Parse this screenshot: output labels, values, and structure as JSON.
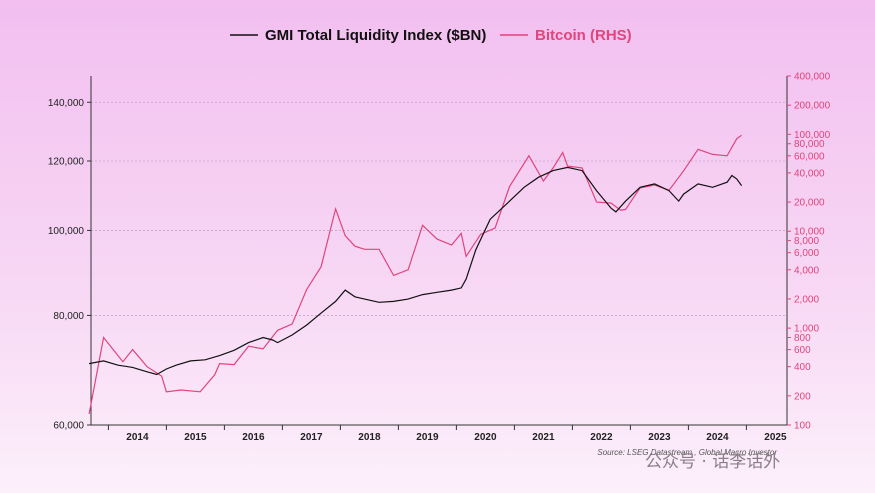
{
  "chart_data": {
    "type": "line",
    "title": "",
    "xlabel": "",
    "ylabel": "",
    "legend": {
      "placement": "top-center"
    },
    "grid": true,
    "x_ticks": [
      "2014",
      "2015",
      "2016",
      "2017",
      "2018",
      "2019",
      "2020",
      "2021",
      "2022",
      "2023",
      "2024",
      "2025"
    ],
    "y_left": {
      "scale": "log",
      "ylim": [
        60000,
        150000
      ],
      "ticks": [
        60000,
        80000,
        100000,
        120000,
        140000
      ],
      "tick_labels": [
        "60,000",
        "80,000",
        "100,000",
        "120,000",
        "140,000"
      ]
    },
    "y_right": {
      "scale": "log",
      "ylim": [
        100,
        400000
      ],
      "ticks": [
        100,
        200,
        400,
        600,
        800,
        1000,
        2000,
        4000,
        6000,
        8000,
        10000,
        20000,
        40000,
        60000,
        80000,
        100000,
        200000,
        400000
      ],
      "tick_labels": [
        "100",
        "200",
        "400",
        "600",
        "800",
        "1,000",
        "2,000",
        "4,000",
        "6,000",
        "8,000",
        "10,000",
        "20,000",
        "40,000",
        "60,000",
        "80,000",
        "100,000",
        "200,000",
        "400,000"
      ]
    },
    "series": [
      {
        "name": "GMI Total Liquidity Index ($BN)",
        "axis": "left",
        "color": "#111111",
        "points": [
          [
            "2013-09",
            70500
          ],
          [
            "2013-12",
            71000
          ],
          [
            "2014-03",
            70200
          ],
          [
            "2014-06",
            69800
          ],
          [
            "2014-09",
            69000
          ],
          [
            "2014-11",
            68500
          ],
          [
            "2015-01",
            69500
          ],
          [
            "2015-03",
            70200
          ],
          [
            "2015-06",
            71000
          ],
          [
            "2015-09",
            71200
          ],
          [
            "2015-12",
            72000
          ],
          [
            "2016-03",
            73000
          ],
          [
            "2016-06",
            74500
          ],
          [
            "2016-09",
            75500
          ],
          [
            "2016-11",
            75000
          ],
          [
            "2016-12",
            74500
          ],
          [
            "2017-03",
            76000
          ],
          [
            "2017-06",
            78000
          ],
          [
            "2017-09",
            80500
          ],
          [
            "2017-12",
            83000
          ],
          [
            "2018-02",
            85500
          ],
          [
            "2018-04",
            84000
          ],
          [
            "2018-06",
            83500
          ],
          [
            "2018-09",
            82800
          ],
          [
            "2018-12",
            83000
          ],
          [
            "2019-03",
            83500
          ],
          [
            "2019-06",
            84500
          ],
          [
            "2019-09",
            85000
          ],
          [
            "2019-12",
            85500
          ],
          [
            "2020-02",
            86000
          ],
          [
            "2020-03",
            88000
          ],
          [
            "2020-05",
            95000
          ],
          [
            "2020-08",
            103000
          ],
          [
            "2020-12",
            108000
          ],
          [
            "2021-03",
            112000
          ],
          [
            "2021-06",
            115000
          ],
          [
            "2021-09",
            117000
          ],
          [
            "2021-12",
            118000
          ],
          [
            "2022-03",
            117000
          ],
          [
            "2022-06",
            111000
          ],
          [
            "2022-09",
            106000
          ],
          [
            "2022-10",
            105000
          ],
          [
            "2022-12",
            108000
          ],
          [
            "2023-03",
            112000
          ],
          [
            "2023-06",
            113000
          ],
          [
            "2023-09",
            111000
          ],
          [
            "2023-11",
            108000
          ],
          [
            "2023-12",
            110000
          ],
          [
            "2024-03",
            113000
          ],
          [
            "2024-06",
            112000
          ],
          [
            "2024-09",
            113500
          ],
          [
            "2024-10",
            115500
          ],
          [
            "2024-11",
            114500
          ],
          [
            "2024-12",
            112500
          ]
        ]
      },
      {
        "name": "Bitcoin (RHS)",
        "axis": "right",
        "color": "#e0457b",
        "points": [
          [
            "2013-09",
            130
          ],
          [
            "2013-12",
            800
          ],
          [
            "2014-02",
            600
          ],
          [
            "2014-04",
            450
          ],
          [
            "2014-06",
            600
          ],
          [
            "2014-09",
            400
          ],
          [
            "2014-12",
            320
          ],
          [
            "2015-01",
            220
          ],
          [
            "2015-04",
            230
          ],
          [
            "2015-08",
            220
          ],
          [
            "2015-11",
            330
          ],
          [
            "2015-12",
            430
          ],
          [
            "2016-03",
            420
          ],
          [
            "2016-06",
            650
          ],
          [
            "2016-09",
            610
          ],
          [
            "2016-12",
            950
          ],
          [
            "2017-03",
            1100
          ],
          [
            "2017-06",
            2500
          ],
          [
            "2017-09",
            4300
          ],
          [
            "2017-12",
            17000
          ],
          [
            "2018-02",
            9000
          ],
          [
            "2018-04",
            7000
          ],
          [
            "2018-06",
            6500
          ],
          [
            "2018-09",
            6500
          ],
          [
            "2018-12",
            3500
          ],
          [
            "2019-03",
            4000
          ],
          [
            "2019-06",
            11500
          ],
          [
            "2019-09",
            8300
          ],
          [
            "2019-12",
            7200
          ],
          [
            "2020-02",
            9500
          ],
          [
            "2020-03",
            5500
          ],
          [
            "2020-06",
            9300
          ],
          [
            "2020-09",
            10800
          ],
          [
            "2020-12",
            29000
          ],
          [
            "2021-04",
            60000
          ],
          [
            "2021-07",
            33000
          ],
          [
            "2021-09",
            45000
          ],
          [
            "2021-11",
            65000
          ],
          [
            "2021-12",
            47000
          ],
          [
            "2022-03",
            45000
          ],
          [
            "2022-06",
            20000
          ],
          [
            "2022-09",
            19500
          ],
          [
            "2022-11",
            16500
          ],
          [
            "2022-12",
            16800
          ],
          [
            "2023-03",
            28000
          ],
          [
            "2023-06",
            30000
          ],
          [
            "2023-09",
            26500
          ],
          [
            "2023-12",
            42000
          ],
          [
            "2024-03",
            70000
          ],
          [
            "2024-06",
            62000
          ],
          [
            "2024-09",
            60000
          ],
          [
            "2024-11",
            90000
          ],
          [
            "2024-12",
            98000
          ]
        ]
      }
    ],
    "source": "Source: LSEG Datastream , Global Macro Investor"
  },
  "legend_items": [
    {
      "label": "GMI Total Liquidity Index ($BN)",
      "color": "#111111"
    },
    {
      "label": "Bitcoin (RHS)",
      "color": "#e0457b"
    }
  ],
  "watermark": "公众号 · 话李话外"
}
